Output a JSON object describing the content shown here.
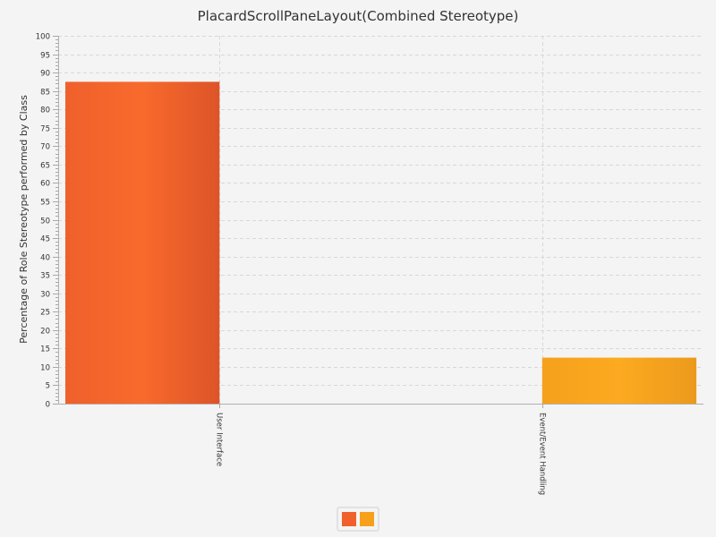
{
  "chart_data": {
    "type": "bar",
    "title": "PlacardScrollPaneLayout(Combined Stereotype)",
    "xlabel": "",
    "ylabel": "Percentage of Role Stereotype performed by Class",
    "ylim": [
      0,
      100
    ],
    "y_major_step": 5,
    "y_minor_step": 1,
    "grid": true,
    "categories": [
      "User Interface",
      "Event/Event Handling"
    ],
    "series": [
      {
        "values": [
          87.5,
          0
        ],
        "color": "#f0602c",
        "color_light": "#f86a2c",
        "color_dark": "#dd5428"
      },
      {
        "values": [
          0,
          12.5
        ],
        "color": "#f6a01c",
        "color_light": "#fcaa20",
        "color_dark": "#ec9a1c"
      }
    ],
    "legend_placement": "bottom-center"
  }
}
